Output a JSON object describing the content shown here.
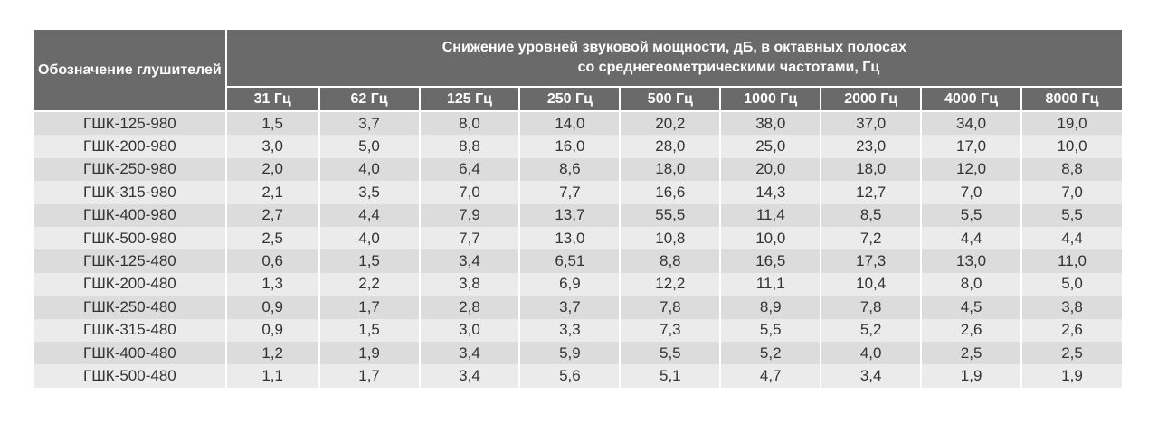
{
  "table": {
    "header": {
      "name": "Обозначение глушителей",
      "group": [
        "Снижение уровней звуковой мощности, дБ, в октавных полосах",
        "со среднегеометрическими частотами, Гц"
      ],
      "bands": [
        "31 Гц",
        "62 Гц",
        "125 Гц",
        "250 Гц",
        "500 Гц",
        "1000 Гц",
        "2000 Гц",
        "4000 Гц",
        "8000 Гц"
      ]
    },
    "rows": [
      [
        "ГШК-125-980",
        "1,5",
        "3,7",
        "8,0",
        "14,0",
        "20,2",
        "38,0",
        "37,0",
        "34,0",
        "19,0"
      ],
      [
        "ГШК-200-980",
        "3,0",
        "5,0",
        "8,8",
        "16,0",
        "28,0",
        "25,0",
        "23,0",
        "17,0",
        "10,0"
      ],
      [
        "ГШК-250-980",
        "2,0",
        "4,0",
        "6,4",
        "8,6",
        "18,0",
        "20,0",
        "18,0",
        "12,0",
        "8,8"
      ],
      [
        "ГШК-315-980",
        "2,1",
        "3,5",
        "7,0",
        "7,7",
        "16,6",
        "14,3",
        "12,7",
        "7,0",
        "7,0"
      ],
      [
        "ГШК-400-980",
        "2,7",
        "4,4",
        "7,9",
        "13,7",
        "55,5",
        "11,4",
        "8,5",
        "5,5",
        "5,5"
      ],
      [
        "ГШК-500-980",
        "2,5",
        "4,0",
        "7,7",
        "13,0",
        "10,8",
        "10,0",
        "7,2",
        "4,4",
        "4,4"
      ],
      [
        "ГШК-125-480",
        "0,6",
        "1,5",
        "3,4",
        "6,51",
        "8,8",
        "16,5",
        "17,3",
        "13,0",
        "11,0"
      ],
      [
        "ГШК-200-480",
        "1,3",
        "2,2",
        "3,8",
        "6,9",
        "12,2",
        "11,1",
        "10,4",
        "8,0",
        "5,0"
      ],
      [
        "ГШК-250-480",
        "0,9",
        "1,7",
        "2,8",
        "3,7",
        "7,8",
        "8,9",
        "7,8",
        "4,5",
        "3,8"
      ],
      [
        "ГШК-315-480",
        "0,9",
        "1,5",
        "3,0",
        "3,3",
        "7,3",
        "5,5",
        "5,2",
        "2,6",
        "2,6"
      ],
      [
        "ГШК-400-480",
        "1,2",
        "1,9",
        "3,4",
        "5,9",
        "5,5",
        "5,2",
        "4,0",
        "2,5",
        "2,5"
      ],
      [
        "ГШК-500-480",
        "1,1",
        "1,7",
        "3,4",
        "5,6",
        "5,1",
        "4,7",
        "3,4",
        "1,9",
        "1,9"
      ]
    ]
  }
}
